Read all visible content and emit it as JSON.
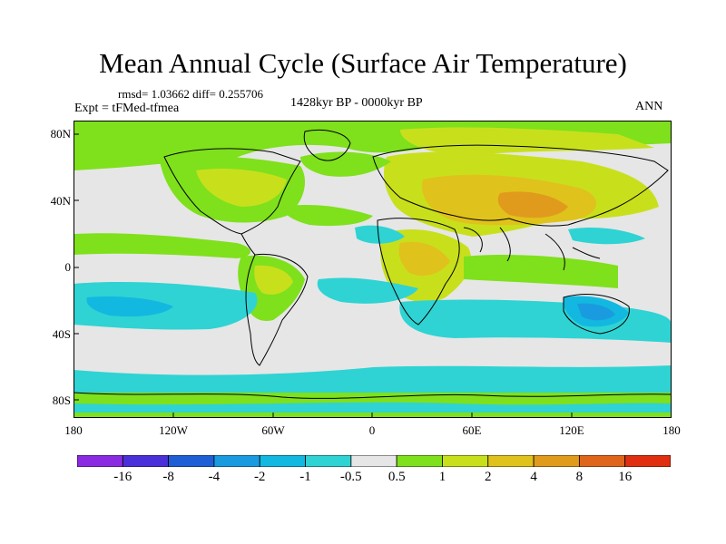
{
  "title": "Mean Annual Cycle (Surface Air Temperature)",
  "stats": "rmsd= 1.03662 diff= 0.255706",
  "experiment": "Expt = tFMed-tfmea",
  "period": "1428kyr BP - 0000kyr BP",
  "season": "ANN",
  "map": {
    "lat_ticks": [
      "80N",
      "40N",
      "0",
      "40S",
      "80S"
    ],
    "lon_ticks": [
      "180",
      "120W",
      "60W",
      "0",
      "60E",
      "120E",
      "180"
    ]
  },
  "colorbar": {
    "colors": [
      "#8a2be2",
      "#4a30d8",
      "#1f5fd6",
      "#1a9be0",
      "#12b8e0",
      "#2fd3d3",
      "#e6e6e6",
      "#7fe01c",
      "#c8e01c",
      "#e0c21c",
      "#e09b1c",
      "#e0651c",
      "#e02f10"
    ],
    "labels": [
      "-16",
      "-8",
      "-4",
      "-2",
      "-1",
      "-0.5",
      "0.5",
      "1",
      "2",
      "4",
      "8",
      "16"
    ]
  },
  "palette": {
    "neutral": "#e6e6e6",
    "green": "#7fe01c",
    "lime": "#c8e01c",
    "amber": "#e0c21c",
    "orange": "#e09b1c",
    "cyan": "#2fd3d3",
    "teal": "#12b8e0",
    "blue": "#1a9be0",
    "coast": "#000000"
  }
}
